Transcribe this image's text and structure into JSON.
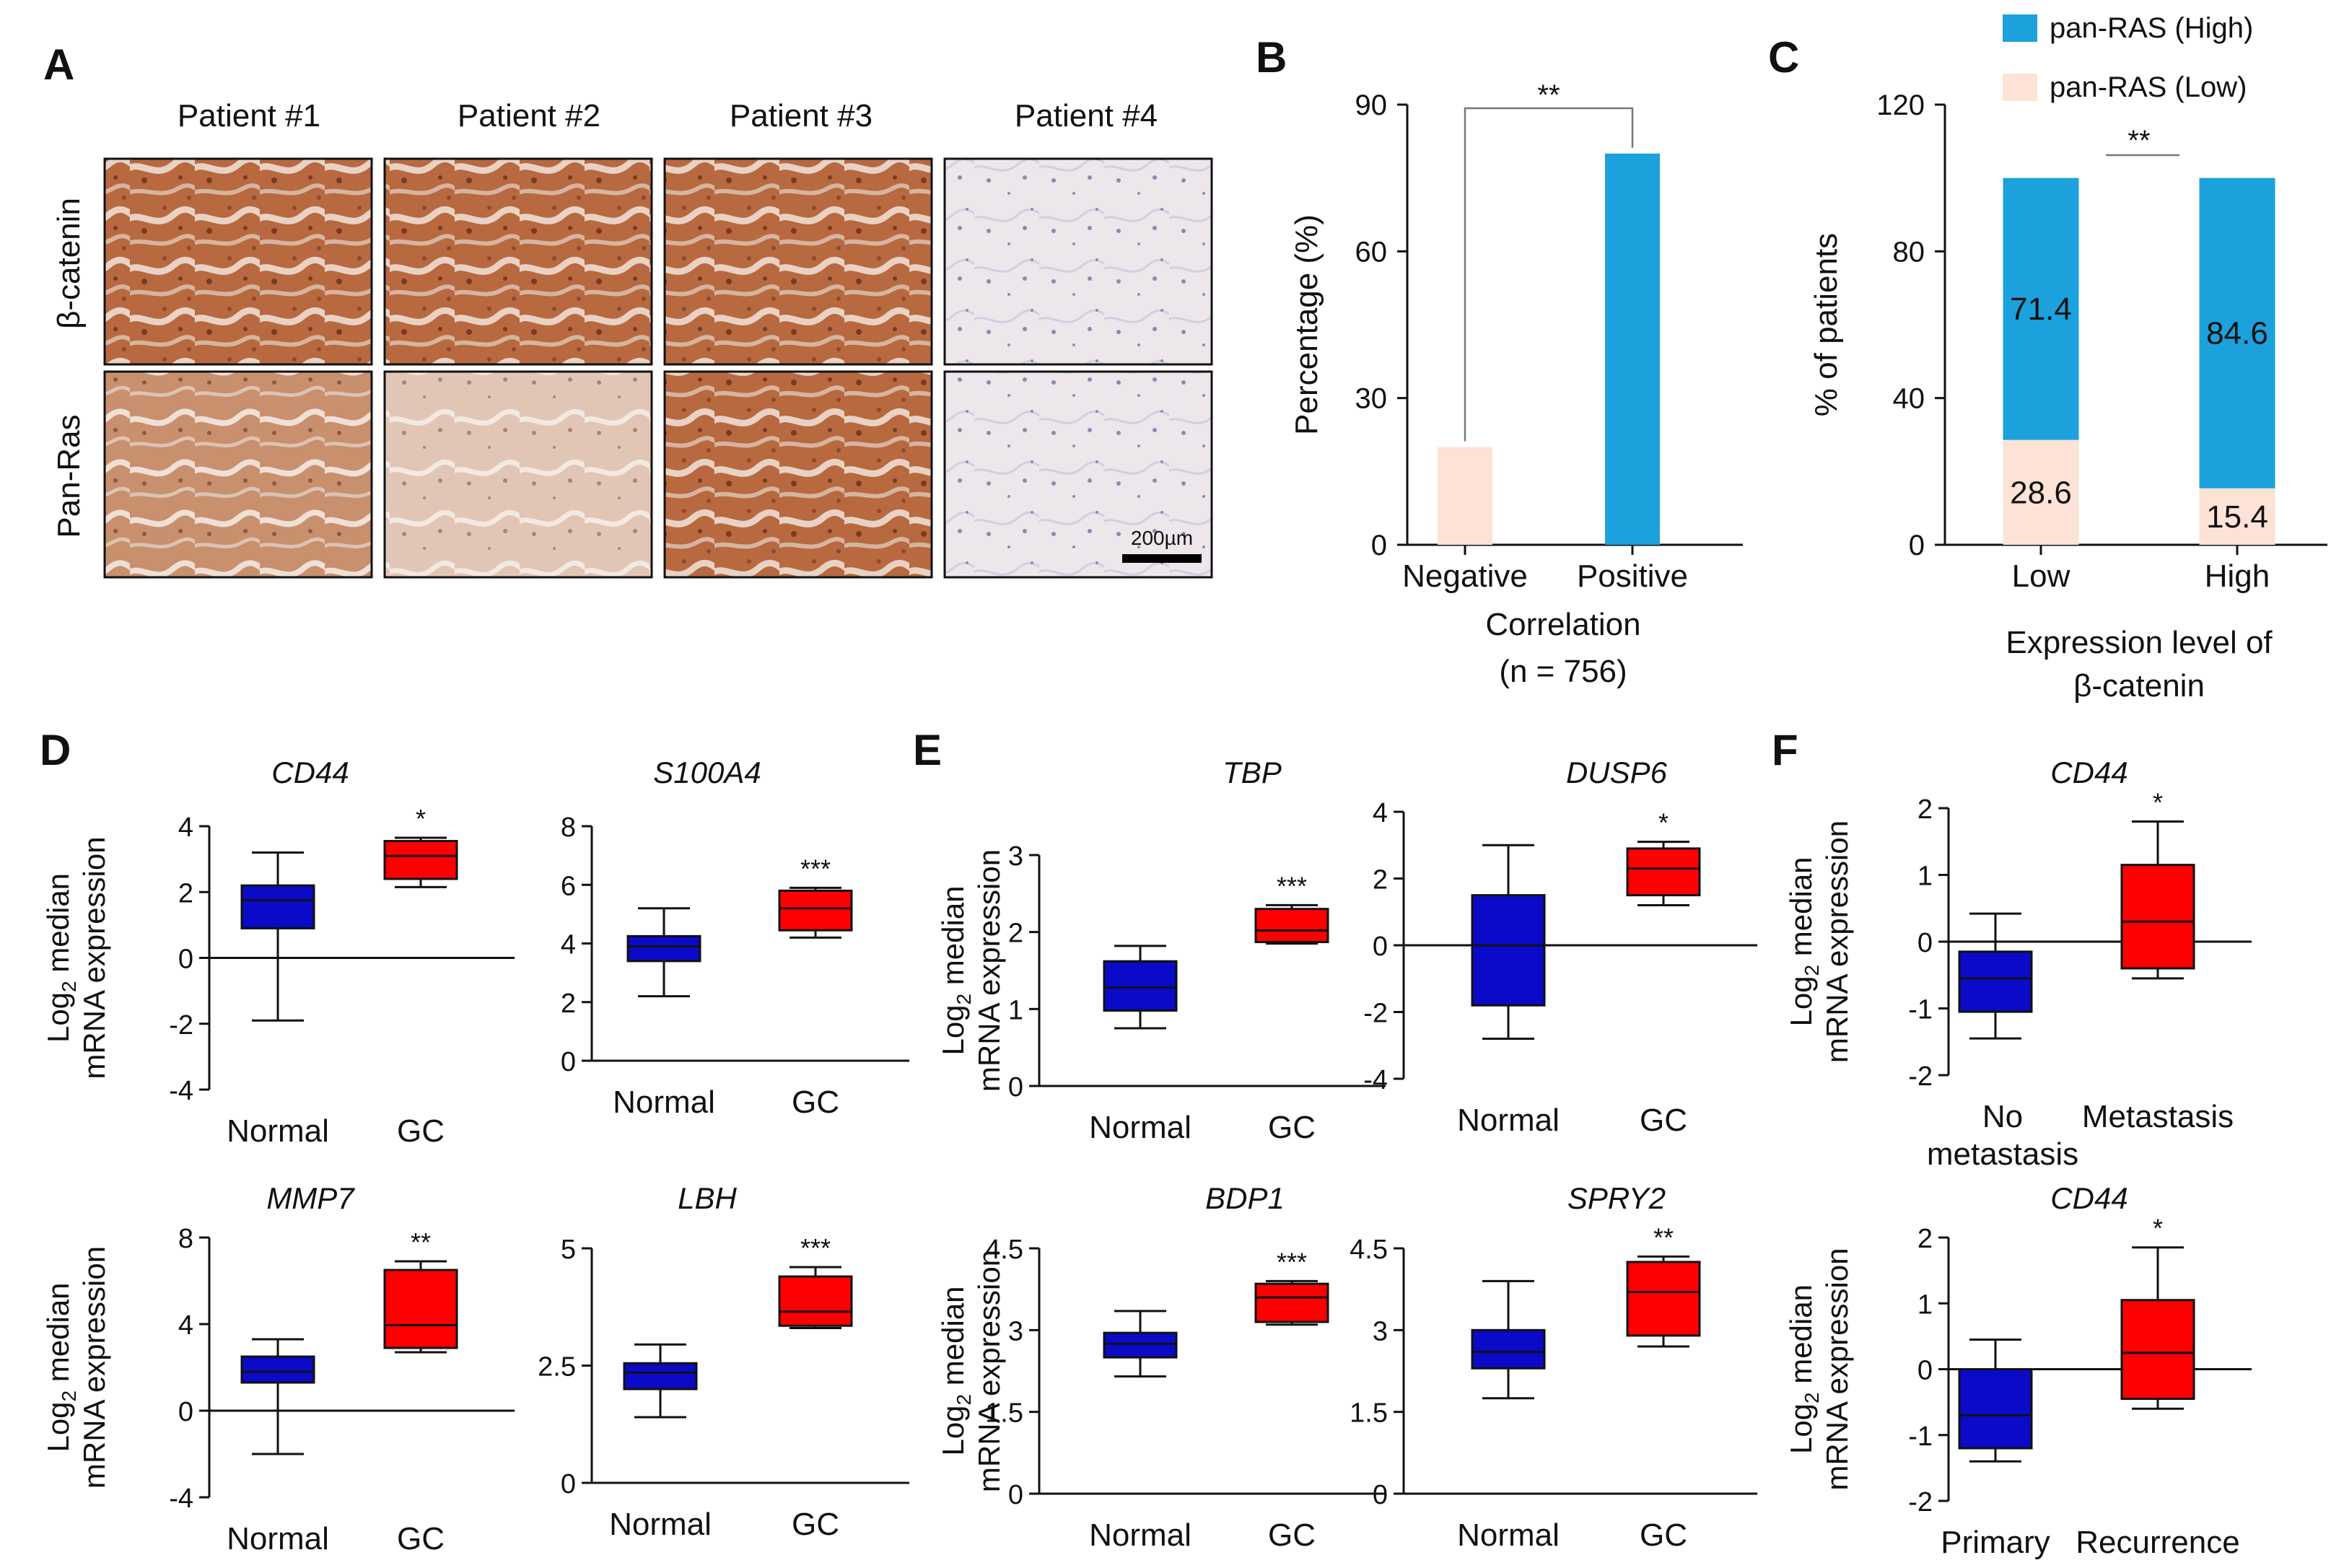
{
  "colors": {
    "normal": "#0a0ac8",
    "gc": "#ff0000",
    "ras_high": "#1ba1dc",
    "ras_low": "#fde3d5",
    "axis": "#111111",
    "tissue_brown": "#b96a44",
    "tissue_pale": "#ead9d2",
    "tissue_blue": "#c9d0e2"
  },
  "panels": {
    "A": {
      "label": "A",
      "patients": [
        "Patient #1",
        "Patient #2",
        "Patient #3",
        "Patient #4"
      ],
      "rows": [
        "β-catenin",
        "Pan-Ras"
      ],
      "scale_bar": "200µm",
      "staining": [
        [
          "strong",
          "strong",
          "strong",
          "negative"
        ],
        [
          "moderate",
          "weak",
          "strong",
          "negative"
        ]
      ]
    },
    "B": {
      "label": "B"
    },
    "C": {
      "label": "C",
      "legend": [
        "pan-RAS (High)",
        "pan-RAS (Low)"
      ]
    },
    "D": {
      "label": "D"
    },
    "E": {
      "label": "E"
    },
    "F": {
      "label": "F"
    }
  },
  "chart_data": [
    {
      "id": "B",
      "type": "bar",
      "categories": [
        "Negative",
        "Positive"
      ],
      "values": [
        20,
        80
      ],
      "colors": [
        "ras_low",
        "ras_high"
      ],
      "ylabel": "Percentage (%)",
      "xlabel": "Correlation",
      "n_label": "(n = 756)",
      "yticks": [
        0,
        30,
        60,
        90
      ],
      "ylim": [
        0,
        90
      ],
      "significance": "**"
    },
    {
      "id": "C",
      "type": "bar",
      "stacked": true,
      "categories": [
        "Low",
        "High"
      ],
      "series": [
        {
          "name": "pan-RAS (Low)",
          "values": [
            28.6,
            15.4
          ],
          "color": "ras_low"
        },
        {
          "name": "pan-RAS (High)",
          "values": [
            71.4,
            84.6
          ],
          "color": "ras_high"
        }
      ],
      "ylabel": "% of patients",
      "xlabel": [
        "Expression level of",
        "β-catenin"
      ],
      "yticks": [
        0,
        40,
        80,
        120
      ],
      "ylim": [
        0,
        120
      ],
      "significance": "**"
    },
    {
      "id": "D-CD44",
      "type": "box",
      "title": "CD44",
      "categories": [
        "Normal",
        "GC"
      ],
      "boxes": [
        {
          "min": -1.9,
          "q1": 0.9,
          "median": 1.75,
          "q3": 2.2,
          "max": 3.2
        },
        {
          "min": 2.15,
          "q1": 2.4,
          "median": 3.1,
          "q3": 3.55,
          "max": 3.65
        }
      ],
      "yticks": [
        "4",
        "2",
        "0",
        "-2",
        "-4"
      ],
      "ylim": [
        -4,
        4
      ],
      "zero_line": true,
      "significance": "*"
    },
    {
      "id": "D-S100A4",
      "type": "box",
      "title": "S100A4",
      "categories": [
        "Normal",
        "GC"
      ],
      "boxes": [
        {
          "min": 2.2,
          "q1": 3.4,
          "median": 3.9,
          "q3": 4.25,
          "max": 5.2
        },
        {
          "min": 4.2,
          "q1": 4.45,
          "median": 5.2,
          "q3": 5.8,
          "max": 5.9
        }
      ],
      "yticks": [
        "8",
        "6",
        "4",
        "2",
        "0"
      ],
      "ylim": [
        0,
        8
      ],
      "zero_line": false,
      "significance": "***"
    },
    {
      "id": "D-MMP7",
      "type": "box",
      "title": "MMP7",
      "categories": [
        "Normal",
        "GC"
      ],
      "boxes": [
        {
          "min": -2.0,
          "q1": 1.3,
          "median": 1.8,
          "q3": 2.5,
          "max": 3.3
        },
        {
          "min": 2.7,
          "q1": 2.9,
          "median": 3.95,
          "q3": 6.5,
          "max": 6.9
        }
      ],
      "yticks": [
        "8",
        "4",
        "0",
        "-4"
      ],
      "ylim": [
        -4,
        8
      ],
      "zero_line": true,
      "significance": "**"
    },
    {
      "id": "D-LBH",
      "type": "box",
      "title": "LBH",
      "categories": [
        "Normal",
        "GC"
      ],
      "boxes": [
        {
          "min": 1.4,
          "q1": 2.0,
          "median": 2.35,
          "q3": 2.55,
          "max": 2.95
        },
        {
          "min": 3.3,
          "q1": 3.35,
          "median": 3.65,
          "q3": 4.4,
          "max": 4.6
        }
      ],
      "yticks": [
        "5",
        "2.5",
        "0"
      ],
      "ylim": [
        0,
        5
      ],
      "zero_line": false,
      "significance": "***"
    },
    {
      "id": "E-TBP",
      "type": "box",
      "title": "TBP",
      "categories": [
        "Normal",
        "GC"
      ],
      "boxes": [
        {
          "min": 0.75,
          "q1": 0.98,
          "median": 1.28,
          "q3": 1.62,
          "max": 1.82
        },
        {
          "min": 1.85,
          "q1": 1.87,
          "median": 2.02,
          "q3": 2.3,
          "max": 2.35
        }
      ],
      "yticks": [
        "3",
        "2",
        "1",
        "0"
      ],
      "ylim": [
        0,
        3
      ],
      "zero_line": false,
      "significance": "***"
    },
    {
      "id": "E-DUSP6",
      "type": "box",
      "title": "DUSP6",
      "categories": [
        "Normal",
        "GC"
      ],
      "boxes": [
        {
          "min": -2.8,
          "q1": -1.8,
          "median": 0.0,
          "q3": 1.5,
          "max": 3.0
        },
        {
          "min": 1.2,
          "q1": 1.5,
          "median": 2.3,
          "q3": 2.9,
          "max": 3.1
        }
      ],
      "yticks": [
        "4",
        "2",
        "0",
        "-2",
        "-4"
      ],
      "ylim": [
        -4,
        4
      ],
      "zero_line": true,
      "significance": "*"
    },
    {
      "id": "E-BDP1",
      "type": "box",
      "title": "BDP1",
      "categories": [
        "Normal",
        "GC"
      ],
      "boxes": [
        {
          "min": 2.15,
          "q1": 2.5,
          "median": 2.75,
          "q3": 2.95,
          "max": 3.35
        },
        {
          "min": 3.1,
          "q1": 3.15,
          "median": 3.6,
          "q3": 3.85,
          "max": 3.9
        }
      ],
      "yticks": [
        "4.5",
        "3",
        "1.5",
        "0"
      ],
      "ylim": [
        0,
        4.5
      ],
      "zero_line": false,
      "significance": "***"
    },
    {
      "id": "E-SPRY2",
      "type": "box",
      "title": "SPRY2",
      "categories": [
        "Normal",
        "GC"
      ],
      "boxes": [
        {
          "min": 1.75,
          "q1": 2.3,
          "median": 2.6,
          "q3": 3.0,
          "max": 3.9
        },
        {
          "min": 2.7,
          "q1": 2.9,
          "median": 3.7,
          "q3": 4.25,
          "max": 4.35
        }
      ],
      "yticks": [
        "4.5",
        "3",
        "1.5",
        "0"
      ],
      "ylim": [
        0,
        4.5
      ],
      "zero_line": false,
      "significance": "**"
    },
    {
      "id": "F-CD44-met",
      "type": "box",
      "title": "CD44",
      "categories": [
        "No metastasis",
        "Metastasis"
      ],
      "boxes": [
        {
          "min": -1.45,
          "q1": -1.05,
          "median": -0.55,
          "q3": -0.15,
          "max": 0.42
        },
        {
          "min": -0.55,
          "q1": -0.4,
          "median": 0.3,
          "q3": 1.15,
          "max": 1.8
        }
      ],
      "yticks": [
        "2",
        "1",
        "0",
        "-1",
        "-2"
      ],
      "ylim": [
        -2,
        2
      ],
      "zero_line": true,
      "significance": "*"
    },
    {
      "id": "F-CD44-rec",
      "type": "box",
      "title": "CD44",
      "categories": [
        "Primary",
        "Recurrence"
      ],
      "boxes": [
        {
          "min": -1.4,
          "q1": -1.2,
          "median": -0.7,
          "q3": 0.0,
          "max": 0.45
        },
        {
          "min": -0.6,
          "q1": -0.45,
          "median": 0.25,
          "q3": 1.05,
          "max": 1.85
        }
      ],
      "yticks": [
        "2",
        "1",
        "0",
        "-1",
        "-2"
      ],
      "ylim": [
        -2,
        2
      ],
      "zero_line": true,
      "significance": "*"
    }
  ],
  "box_ylabel": [
    "Log",
    "2",
    " median",
    "mRNA expression"
  ]
}
